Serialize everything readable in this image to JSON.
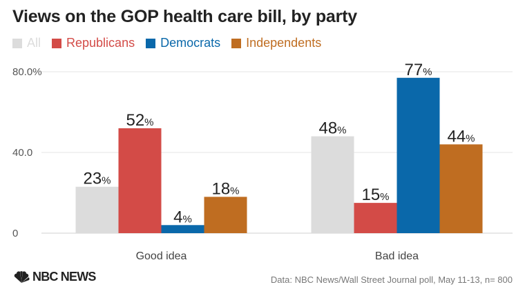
{
  "chart_data": {
    "type": "bar",
    "title": "Views on the GOP health care bill, by party",
    "categories": [
      "Good idea",
      "Bad idea"
    ],
    "series": [
      {
        "name": "All",
        "color": "#dcdcdc",
        "values": [
          23,
          48
        ]
      },
      {
        "name": "Republicans",
        "color": "#d34b47",
        "values": [
          52,
          15
        ]
      },
      {
        "name": "Democrats",
        "color": "#0a68aa",
        "values": [
          4,
          77
        ]
      },
      {
        "name": "Independents",
        "color": "#bf6d21",
        "values": [
          18,
          44
        ]
      }
    ],
    "value_suffix": "%",
    "yticks": [
      "0",
      "40.0",
      "80.0%"
    ],
    "ytick_values": [
      0,
      40,
      80
    ],
    "ylim": [
      0,
      80
    ],
    "grid": true,
    "legend_position": "top-left",
    "source": "Data: NBC News/Wall Street Journal poll, May 11-13, n= 800",
    "logo": "NBC NEWS"
  }
}
